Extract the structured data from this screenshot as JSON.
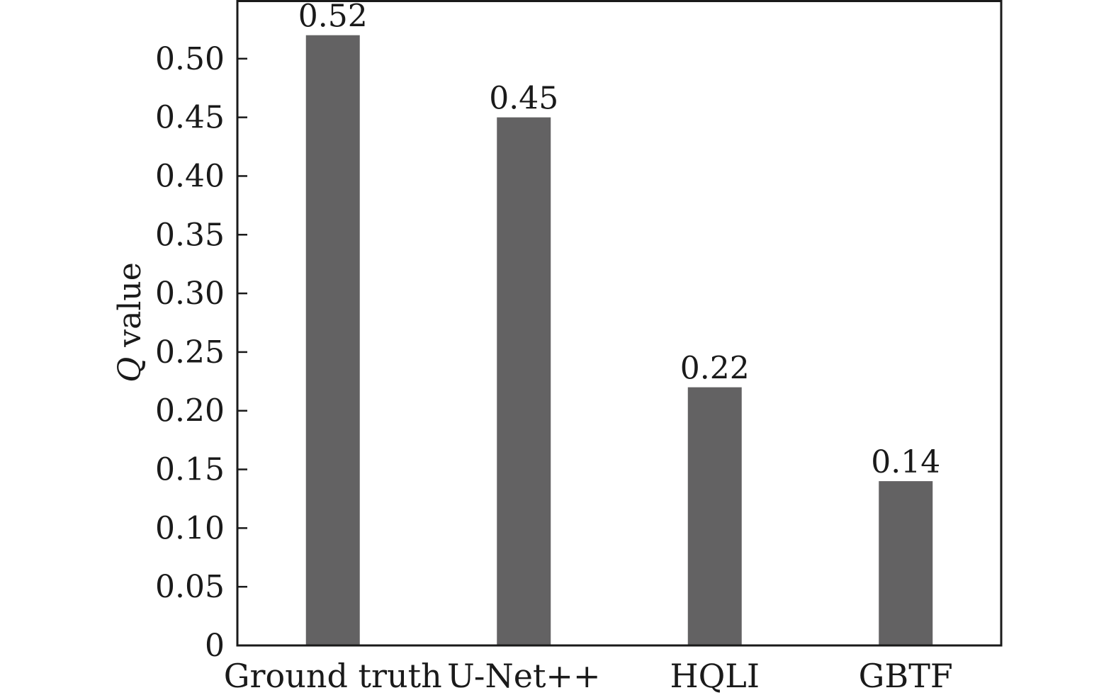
{
  "chart_data": {
    "type": "bar",
    "categories": [
      "Ground truth",
      "U-Net++",
      "HQLI",
      "GBTF"
    ],
    "values": [
      0.52,
      0.45,
      0.22,
      0.14
    ],
    "data_labels": [
      "0.52",
      "0.45",
      "0.22",
      "0.14"
    ],
    "ylabel_symbol": "Q",
    "ylabel_text": " value",
    "xlabel": "",
    "ylim": [
      0,
      0.55
    ],
    "yticks": [
      0,
      0.05,
      0.1,
      0.15,
      0.2,
      0.25,
      0.3,
      0.35,
      0.4,
      0.45,
      0.5
    ],
    "ytick_labels": [
      "0",
      "0.05",
      "0.10",
      "0.15",
      "0.20",
      "0.25",
      "0.30",
      "0.35",
      "0.40",
      "0.45",
      "0.50"
    ],
    "bar_color": "#636263",
    "axis_color": "#1a1a1a",
    "grid": false,
    "legend": "none"
  }
}
